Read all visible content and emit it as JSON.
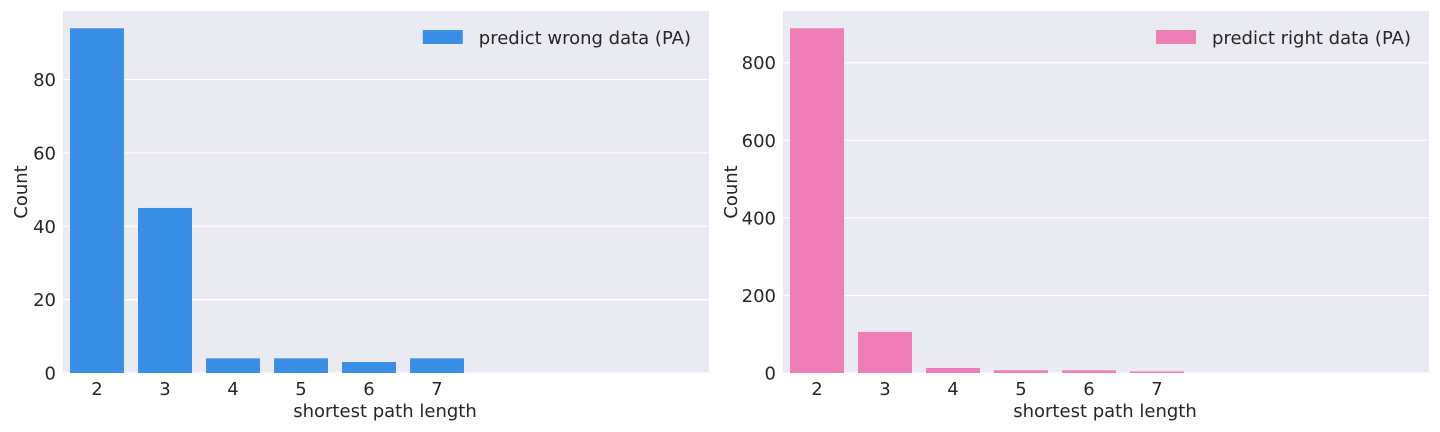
{
  "chart_data": [
    {
      "type": "bar",
      "categories": [
        "2",
        "3",
        "4",
        "5",
        "6",
        "7"
      ],
      "values": [
        94,
        45,
        4,
        4,
        3,
        4
      ],
      "series_name": "predict wrong data (PA)",
      "color": "#3a8ee6",
      "xlabel": "shortest path length",
      "ylabel": "Count",
      "ylim": [
        0,
        98.7
      ],
      "yticks": [
        "0",
        "20",
        "40",
        "60",
        "80"
      ],
      "ytick_values": [
        0,
        20,
        40,
        60,
        80
      ],
      "grid": true,
      "legend_position": "top-right"
    },
    {
      "type": "bar",
      "categories": [
        "2",
        "3",
        "4",
        "5",
        "6",
        "7"
      ],
      "values": [
        889,
        106,
        13,
        7,
        7,
        4
      ],
      "series_name": "predict right data (PA)",
      "color": "#ee7eb6",
      "xlabel": "shortest path length",
      "ylabel": "Count",
      "ylim": [
        0,
        933.4
      ],
      "yticks": [
        "0",
        "200",
        "400",
        "600",
        "800"
      ],
      "ytick_values": [
        0,
        200,
        400,
        600,
        800
      ],
      "grid": true,
      "legend_position": "top-right"
    }
  ]
}
